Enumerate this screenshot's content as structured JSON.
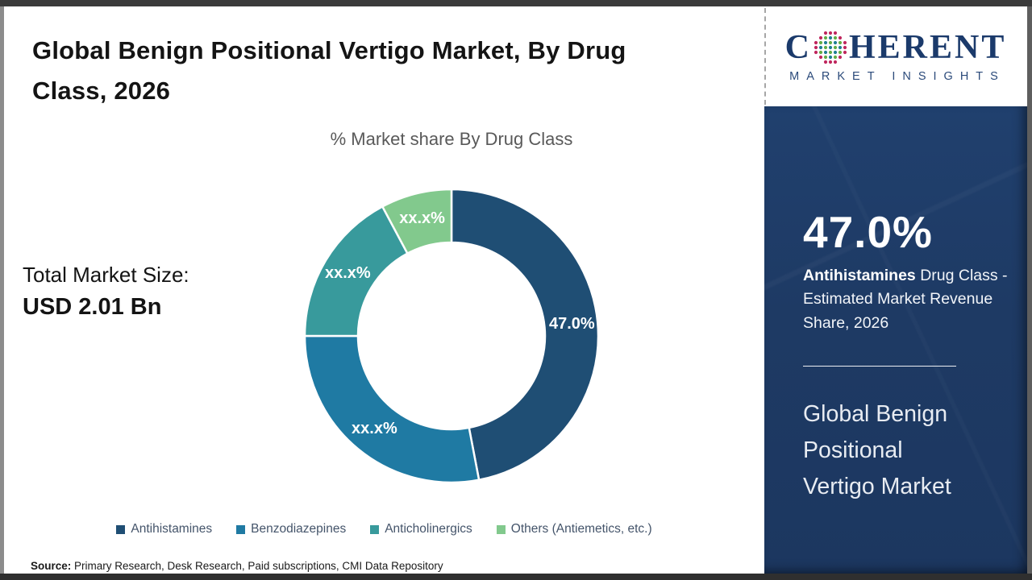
{
  "header": {
    "title": "Global Benign Positional Vertigo Market, By Drug Class, 2026"
  },
  "logo": {
    "brand_c": "C",
    "brand_rest": "HERENT",
    "subtitle": "MARKET INSIGHTS",
    "globe_colors": {
      "teal": "#1f7f93",
      "green": "#63ae46",
      "magenta": "#c0275e"
    },
    "brand_color": "#1b3a6b"
  },
  "main": {
    "chart_title": "% Market share By Drug Class",
    "total_market_label": "Total Market Size:",
    "total_market_value": "USD 2.01 Bn",
    "source_label": "Source:",
    "source_text": " Primary Research, Desk Research, Paid subscriptions, CMI Data Repository"
  },
  "chart_data": {
    "type": "pie",
    "subtype": "donut",
    "title": "% Market share By Drug Class",
    "categories": [
      "Antihistamines",
      "Benzodiazepines",
      "Anticholinergics",
      "Others (Antiemetics, etc.)"
    ],
    "values": [
      47.0,
      28.0,
      17.2,
      7.8
    ],
    "labels": [
      "47.0%",
      "xx.x%",
      "xx.x%",
      "xx.x%"
    ],
    "colors": [
      "#1f4e74",
      "#1f7aa3",
      "#389a9c",
      "#82c98d"
    ],
    "start_angle_deg": 0,
    "direction": "clockwise",
    "legend_position": "bottom"
  },
  "sidebar": {
    "highlight_value": "47.0%",
    "highlight_bold": "Antihistamines",
    "highlight_rest": " Drug Class - Estimated Market Revenue Share, 2026",
    "market_name": "Global Benign Positional Vertigo Market",
    "bg_color": "#1e3a64"
  }
}
